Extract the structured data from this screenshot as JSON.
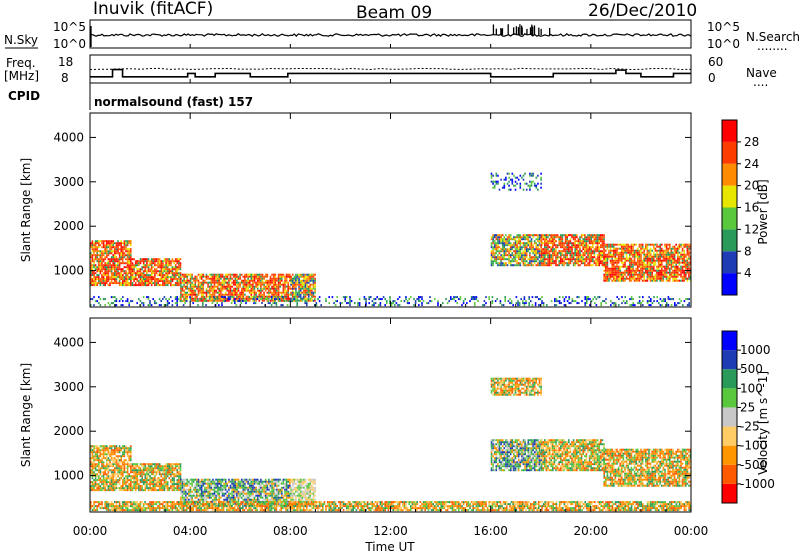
{
  "header": {
    "radar": "Inuvik (fitACF)",
    "beam": "Beam 09",
    "date": "26/Dec/2010"
  },
  "nsky_panel": {
    "left_label": "N.Sky",
    "left_ticks": [
      "10^5",
      "10^0"
    ],
    "right_ticks": [
      "10^5",
      "10^0"
    ],
    "right_label": "N.Search",
    "right_legend": "........"
  },
  "freq_panel": {
    "left_label_1": "Freq.",
    "left_label_2": "[MHz]",
    "left_ticks": [
      "18",
      "8"
    ],
    "right_ticks": [
      "60",
      "0"
    ],
    "right_label": "Nave",
    "right_legend": "....",
    "cpid_label": "CPID",
    "cpid_text": "normalsound (fast) 157"
  },
  "x_axis": {
    "ticks": [
      "00:00",
      "04:00",
      "08:00",
      "12:00",
      "16:00",
      "20:00",
      "00:00"
    ],
    "label": "Time UT"
  },
  "chart_data": [
    {
      "type": "heatmap",
      "title": "",
      "xlabel": "Time UT",
      "ylabel": "Slant Range [km]",
      "xlim_hours": [
        0,
        24
      ],
      "ylim": [
        180,
        4550
      ],
      "yticks": [
        "4000",
        "3000",
        "2000",
        "1000"
      ],
      "colorbar": {
        "label": "Power [dB]",
        "ticks": [
          "28",
          "24",
          "20",
          "16",
          "12",
          "8",
          "4"
        ],
        "colors": [
          "#0000ff",
          "#1e3cb4",
          "#2a9a5a",
          "#5ac83c",
          "#e6e600",
          "#ff8c00",
          "#ff3c00",
          "#ff0000"
        ]
      },
      "echo_regions": [
        {
          "t": [
            0.0,
            1.6
          ],
          "r": [
            650,
            1650
          ],
          "level": "high"
        },
        {
          "t": [
            1.6,
            3.6
          ],
          "r": [
            650,
            1250
          ],
          "level": "high"
        },
        {
          "t": [
            3.6,
            8.0
          ],
          "r": [
            300,
            900
          ],
          "level": "high"
        },
        {
          "t": [
            8.0,
            9.0
          ],
          "r": [
            300,
            900
          ],
          "level": "medium"
        },
        {
          "t": [
            16.0,
            18.0
          ],
          "r": [
            1100,
            1800
          ],
          "level": "medium"
        },
        {
          "t": [
            18.0,
            20.5
          ],
          "r": [
            1100,
            1800
          ],
          "level": "high"
        },
        {
          "t": [
            20.5,
            24.0
          ],
          "r": [
            750,
            1600
          ],
          "level": "high"
        },
        {
          "t": [
            16.0,
            18.0
          ],
          "r": [
            2800,
            3200
          ],
          "level": "low"
        },
        {
          "t": [
            0.0,
            24.0
          ],
          "r": [
            200,
            400
          ],
          "level": "low"
        }
      ]
    },
    {
      "type": "heatmap",
      "title": "",
      "xlabel": "Time UT",
      "ylabel": "Slant Range [km]",
      "xlim_hours": [
        0,
        24
      ],
      "ylim": [
        180,
        4550
      ],
      "yticks": [
        "4000",
        "3000",
        "2000",
        "1000"
      ],
      "colorbar": {
        "label": "Velocity [m s^-1]",
        "ticks": [
          "1000",
          "500",
          "100",
          "25",
          "-25",
          "-100",
          "-500",
          "-1000"
        ],
        "colors": [
          "#ff0000",
          "#ff5a00",
          "#ff9600",
          "#ffcc66",
          "#c8c8c8",
          "#5ac83c",
          "#2a9a5a",
          "#1e3cb4",
          "#0000ff"
        ]
      },
      "echo_regions": [
        {
          "t": [
            0.0,
            1.6
          ],
          "r": [
            650,
            1650
          ],
          "level": "negative"
        },
        {
          "t": [
            1.6,
            3.6
          ],
          "r": [
            650,
            1250
          ],
          "level": "negative"
        },
        {
          "t": [
            3.6,
            8.0
          ],
          "r": [
            300,
            900
          ],
          "level": "positive"
        },
        {
          "t": [
            8.0,
            9.0
          ],
          "r": [
            300,
            900
          ],
          "level": "near-zero"
        },
        {
          "t": [
            16.0,
            18.0
          ],
          "r": [
            1100,
            1800
          ],
          "level": "positive"
        },
        {
          "t": [
            18.0,
            20.5
          ],
          "r": [
            1100,
            1800
          ],
          "level": "mixed"
        },
        {
          "t": [
            20.5,
            24.0
          ],
          "r": [
            750,
            1600
          ],
          "level": "negative"
        },
        {
          "t": [
            16.0,
            18.0
          ],
          "r": [
            2800,
            3200
          ],
          "level": "negative"
        },
        {
          "t": [
            0.0,
            24.0
          ],
          "r": [
            200,
            400
          ],
          "level": "negative"
        }
      ]
    }
  ]
}
